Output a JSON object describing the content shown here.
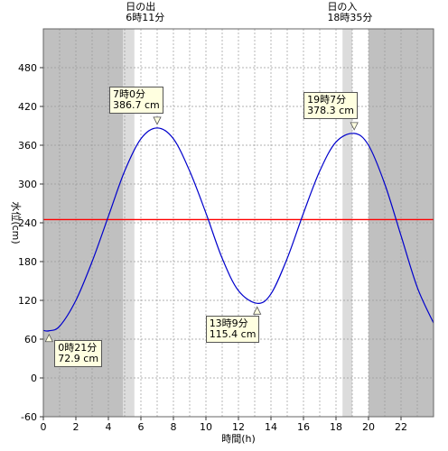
{
  "chart_data": {
    "type": "line",
    "xlabel": "時間(h)",
    "ylabel": "水位(cm)",
    "xlim": [
      0,
      24
    ],
    "ylim": [
      -60,
      540
    ],
    "x_ticks": [
      "0",
      "2",
      "4",
      "6",
      "8",
      "10",
      "12",
      "14",
      "16",
      "18",
      "20",
      "22"
    ],
    "y_ticks": [
      "-60",
      "0",
      "60",
      "120",
      "180",
      "240",
      "300",
      "360",
      "420",
      "480"
    ],
    "grid": true,
    "series": [
      {
        "color": "#0000cc",
        "x": [
          0,
          0.35,
          1,
          2,
          3,
          4,
          5,
          6,
          7,
          8,
          9,
          10,
          11,
          12,
          13.15,
          14,
          15,
          16,
          17,
          18,
          19.12,
          20,
          21,
          22,
          23,
          24
        ],
        "y": [
          73.5,
          72.9,
          80,
          120,
          180,
          250,
          320,
          370,
          386.7,
          370,
          320,
          255,
          185,
          135,
          115.4,
          130,
          185,
          255,
          320,
          365,
          378.3,
          360,
          300,
          220,
          140,
          85
        ]
      }
    ],
    "reference_line": {
      "y": 245,
      "color": "#ff0000"
    },
    "night_shading": [
      [
        0,
        4.9
      ],
      [
        20,
        24
      ]
    ],
    "twilight_shading": [
      [
        4.9,
        5.6
      ],
      [
        18.4,
        19.0
      ]
    ],
    "sunrise": {
      "label": "日の出",
      "time": "6時11分",
      "x": 6.18
    },
    "sunset": {
      "label": "日の入",
      "time": "18時35分",
      "x": 18.58
    },
    "annotations": [
      {
        "x": 0.35,
        "y": 72.9,
        "time": "0時21分",
        "value": "72.9 cm"
      },
      {
        "x": 7.0,
        "y": 386.7,
        "time": "7時0分",
        "value": "386.7 cm"
      },
      {
        "x": 13.15,
        "y": 115.4,
        "time": "13時9分",
        "value": "115.4 cm"
      },
      {
        "x": 19.12,
        "y": 378.3,
        "time": "19時7分",
        "value": "378.3 cm"
      }
    ]
  }
}
